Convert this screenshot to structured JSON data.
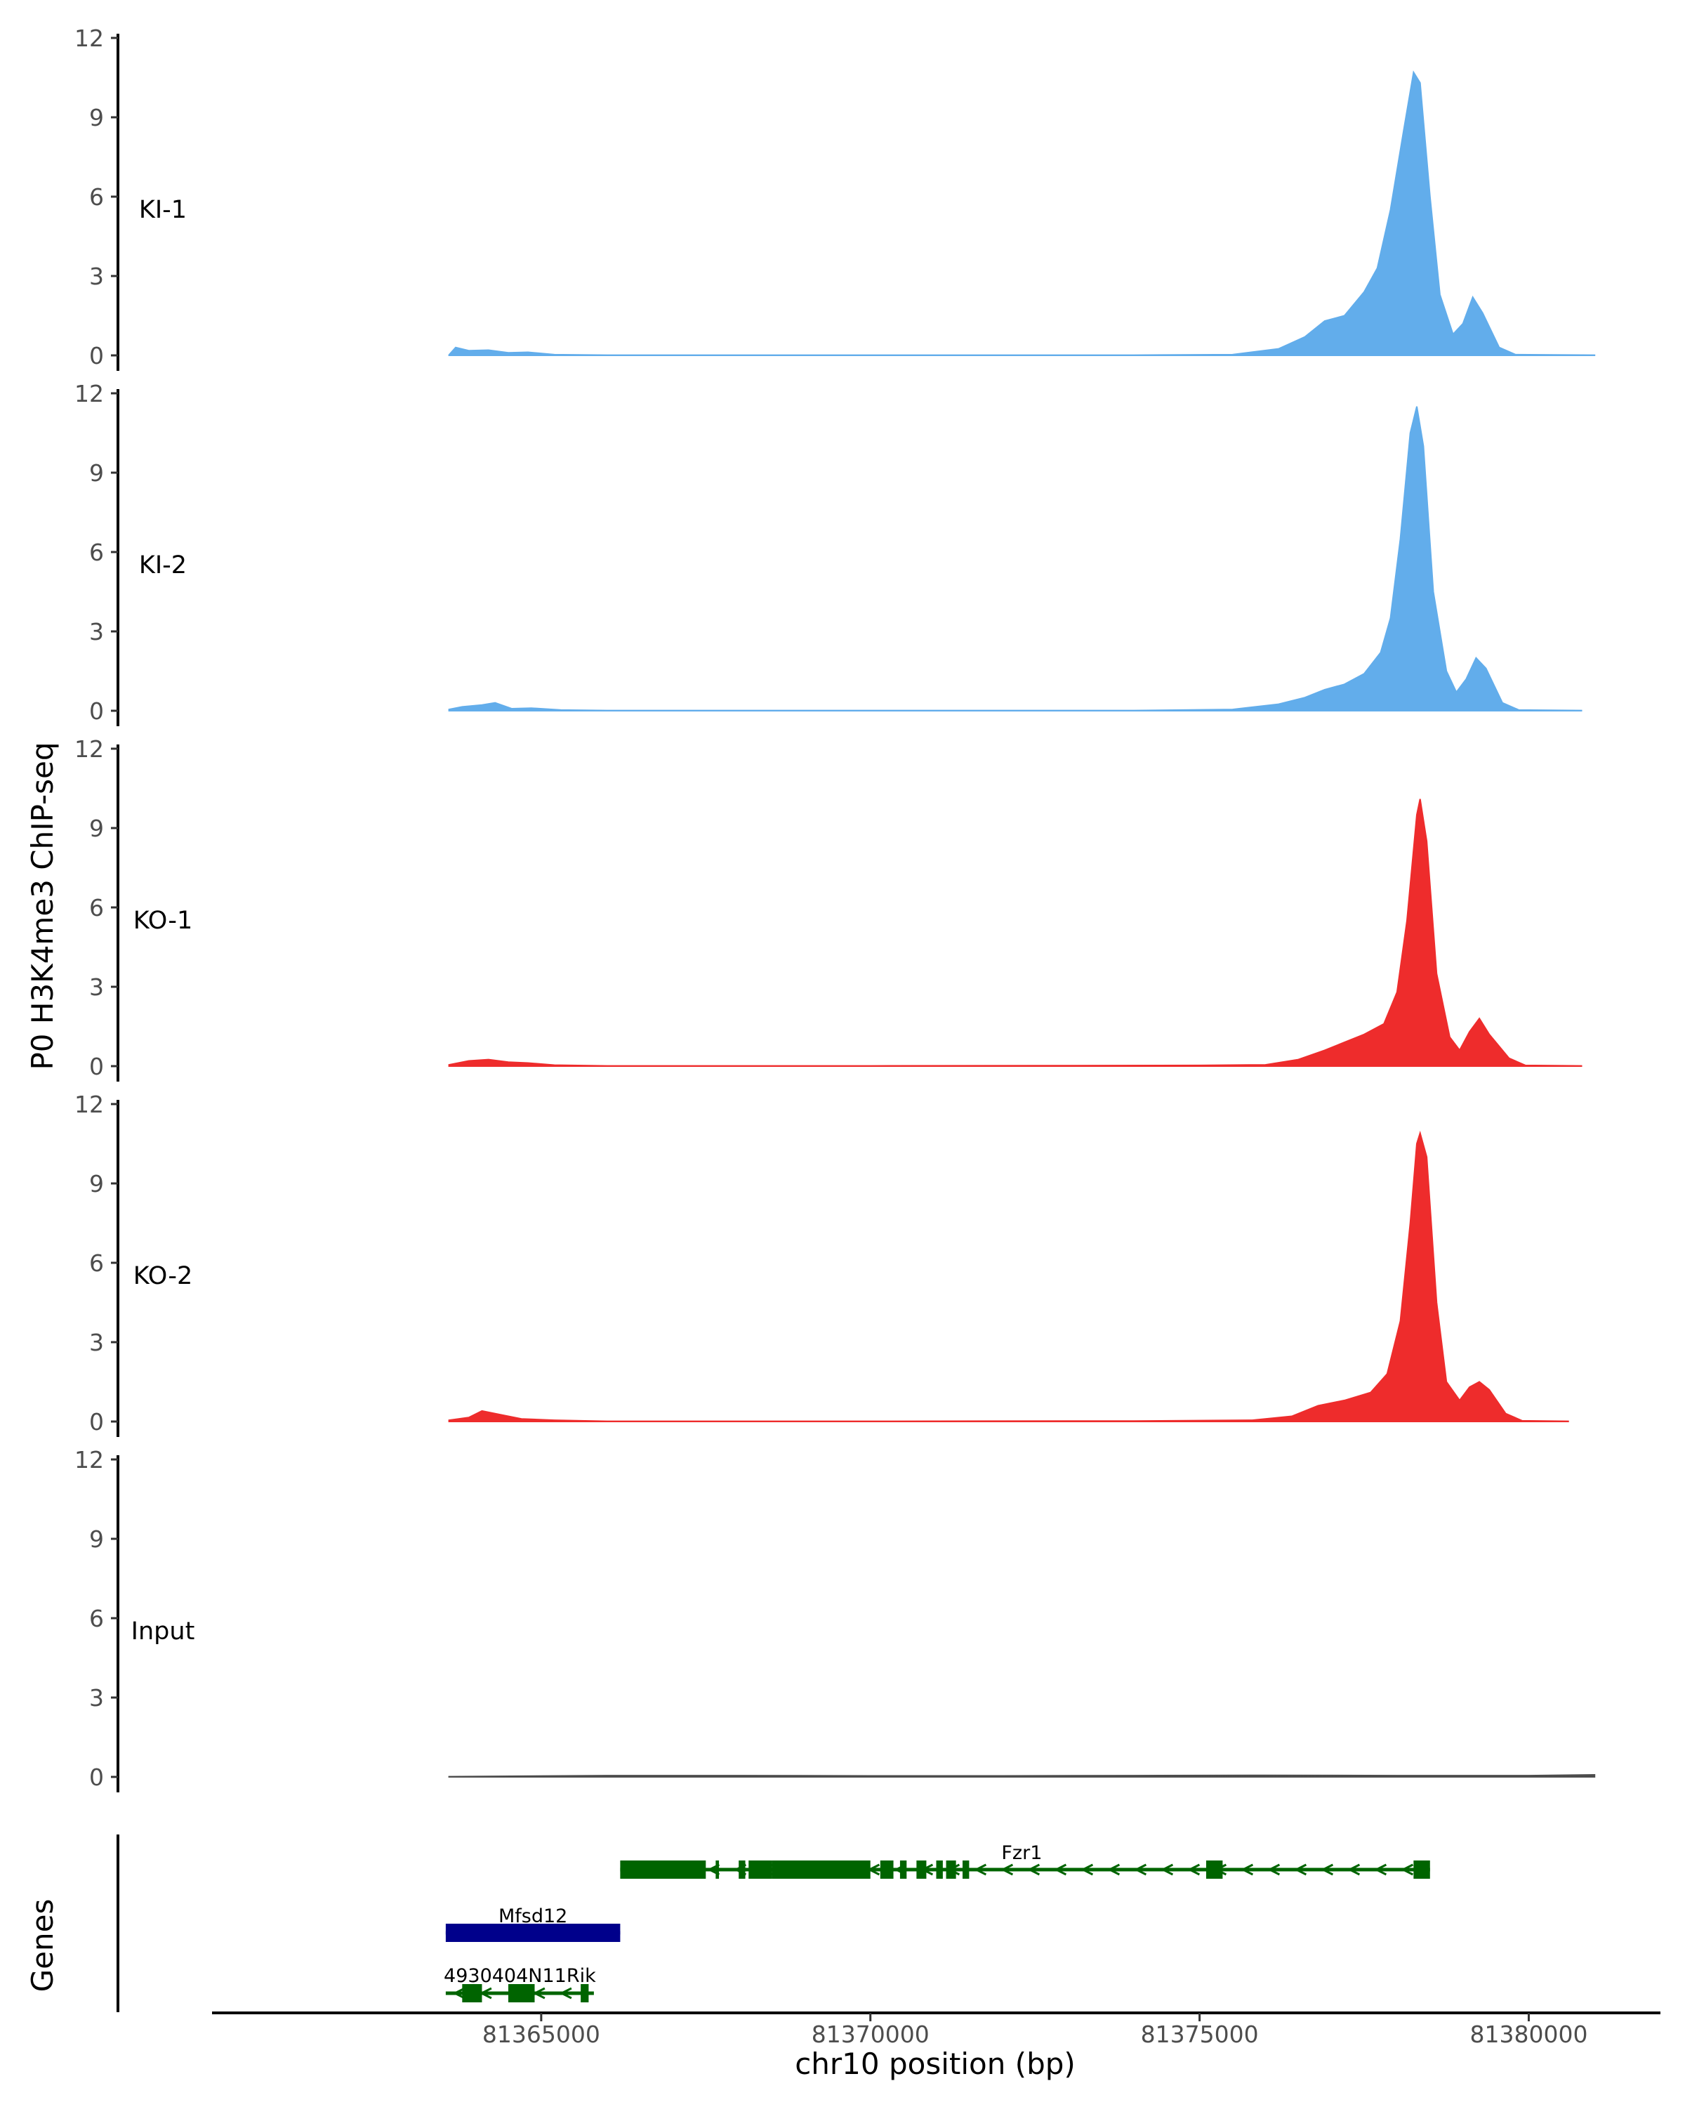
{
  "chart_data": {
    "type": "area",
    "ylabel": "P0 H3K4me3 ChIP-seq",
    "xlabel": "chr10 position (bp)",
    "xlim": [
      81360000,
      81382000
    ],
    "ylim": [
      0,
      12
    ],
    "yticks": [
      "0",
      "3",
      "6",
      "9",
      "12"
    ],
    "xticks": [
      {
        "value": 81365000,
        "label": "81365000"
      },
      {
        "value": 81370000,
        "label": "81370000"
      },
      {
        "value": 81375000,
        "label": "81375000"
      },
      {
        "value": 81380000,
        "label": "81380000"
      }
    ],
    "series": [
      {
        "name": "KI-1",
        "color": "#62ADEB",
        "points": [
          [
            81363600,
            0.02
          ],
          [
            81363700,
            0.3
          ],
          [
            81363900,
            0.18
          ],
          [
            81364200,
            0.2
          ],
          [
            81364500,
            0.1
          ],
          [
            81364800,
            0.12
          ],
          [
            81365200,
            0.03
          ],
          [
            81366000,
            0.01
          ],
          [
            81370000,
            0.01
          ],
          [
            81374000,
            0.01
          ],
          [
            81375500,
            0.03
          ],
          [
            81376200,
            0.25
          ],
          [
            81376600,
            0.7
          ],
          [
            81376900,
            1.3
          ],
          [
            81377200,
            1.5
          ],
          [
            81377500,
            2.4
          ],
          [
            81377700,
            3.3
          ],
          [
            81377900,
            5.5
          ],
          [
            81378100,
            8.5
          ],
          [
            81378250,
            10.7
          ],
          [
            81378350,
            10.3
          ],
          [
            81378500,
            6.0
          ],
          [
            81378650,
            2.3
          ],
          [
            81378850,
            0.8
          ],
          [
            81379000,
            1.2
          ],
          [
            81379150,
            2.2
          ],
          [
            81379300,
            1.6
          ],
          [
            81379550,
            0.3
          ],
          [
            81379800,
            0.03
          ],
          [
            81381000,
            0.01
          ]
        ]
      },
      {
        "name": "KI-2",
        "color": "#62ADEB",
        "points": [
          [
            81363600,
            0.05
          ],
          [
            81363800,
            0.15
          ],
          [
            81364100,
            0.22
          ],
          [
            81364300,
            0.3
          ],
          [
            81364550,
            0.08
          ],
          [
            81364850,
            0.1
          ],
          [
            81365300,
            0.03
          ],
          [
            81366000,
            0.01
          ],
          [
            81374000,
            0.01
          ],
          [
            81375500,
            0.05
          ],
          [
            81376200,
            0.25
          ],
          [
            81376600,
            0.5
          ],
          [
            81376900,
            0.8
          ],
          [
            81377200,
            1.0
          ],
          [
            81377500,
            1.4
          ],
          [
            81377750,
            2.2
          ],
          [
            81377900,
            3.5
          ],
          [
            81378050,
            6.5
          ],
          [
            81378200,
            10.5
          ],
          [
            81378300,
            11.5
          ],
          [
            81378400,
            10.0
          ],
          [
            81378550,
            4.5
          ],
          [
            81378750,
            1.5
          ],
          [
            81378900,
            0.7
          ],
          [
            81379050,
            1.2
          ],
          [
            81379200,
            2.0
          ],
          [
            81379350,
            1.6
          ],
          [
            81379600,
            0.3
          ],
          [
            81379850,
            0.03
          ],
          [
            81380800,
            0.01
          ]
        ]
      },
      {
        "name": "KO-1",
        "color": "#EE2C2C",
        "points": [
          [
            81363600,
            0.05
          ],
          [
            81363900,
            0.2
          ],
          [
            81364200,
            0.25
          ],
          [
            81364500,
            0.15
          ],
          [
            81364800,
            0.12
          ],
          [
            81365200,
            0.04
          ],
          [
            81366000,
            0.01
          ],
          [
            81370000,
            0.01
          ],
          [
            81373000,
            0.02
          ],
          [
            81375000,
            0.03
          ],
          [
            81376000,
            0.05
          ],
          [
            81376500,
            0.25
          ],
          [
            81376900,
            0.6
          ],
          [
            81377200,
            0.9
          ],
          [
            81377500,
            1.2
          ],
          [
            81377800,
            1.6
          ],
          [
            81378000,
            2.8
          ],
          [
            81378150,
            5.5
          ],
          [
            81378300,
            9.5
          ],
          [
            81378350,
            10.1
          ],
          [
            81378450,
            8.5
          ],
          [
            81378600,
            3.5
          ],
          [
            81378800,
            1.1
          ],
          [
            81378950,
            0.6
          ],
          [
            81379100,
            1.3
          ],
          [
            81379250,
            1.8
          ],
          [
            81379400,
            1.2
          ],
          [
            81379700,
            0.3
          ],
          [
            81379950,
            0.03
          ],
          [
            81380800,
            0.01
          ]
        ]
      },
      {
        "name": "KO-2",
        "color": "#EE2C2C",
        "points": [
          [
            81363600,
            0.05
          ],
          [
            81363900,
            0.15
          ],
          [
            81364100,
            0.4
          ],
          [
            81364400,
            0.25
          ],
          [
            81364700,
            0.1
          ],
          [
            81365200,
            0.05
          ],
          [
            81366000,
            0.01
          ],
          [
            81370000,
            0.01
          ],
          [
            81374000,
            0.02
          ],
          [
            81375800,
            0.05
          ],
          [
            81376400,
            0.2
          ],
          [
            81376800,
            0.6
          ],
          [
            81377200,
            0.8
          ],
          [
            81377600,
            1.1
          ],
          [
            81377850,
            1.8
          ],
          [
            81378050,
            3.8
          ],
          [
            81378200,
            7.5
          ],
          [
            81378300,
            10.5
          ],
          [
            81378350,
            10.9
          ],
          [
            81378450,
            10.0
          ],
          [
            81378600,
            4.5
          ],
          [
            81378750,
            1.5
          ],
          [
            81378950,
            0.8
          ],
          [
            81379100,
            1.3
          ],
          [
            81379250,
            1.5
          ],
          [
            81379400,
            1.2
          ],
          [
            81379650,
            0.3
          ],
          [
            81379900,
            0.03
          ],
          [
            81380600,
            0.01
          ]
        ]
      },
      {
        "name": "Input",
        "color": "#4D4D4D",
        "points": [
          [
            81363600,
            0.01
          ],
          [
            81366000,
            0.05
          ],
          [
            81368000,
            0.05
          ],
          [
            81370000,
            0.04
          ],
          [
            81372000,
            0.04
          ],
          [
            81374000,
            0.05
          ],
          [
            81376000,
            0.06
          ],
          [
            81378000,
            0.05
          ],
          [
            81380000,
            0.05
          ],
          [
            81381000,
            0.08
          ]
        ]
      }
    ],
    "genes": {
      "label": "Genes",
      "items": [
        {
          "name": "Fzr1",
          "strand": "-",
          "color": "#006400",
          "start": 81366200,
          "end": 81378500,
          "exons": [
            [
              81366200,
              81367500
            ],
            [
              81367650,
              81367700
            ],
            [
              81368000,
              81368100
            ],
            [
              81368150,
              81368500
            ],
            [
              81368500,
              81370000
            ],
            [
              81370150,
              81370350
            ],
            [
              81370450,
              81370550
            ],
            [
              81370700,
              81370850
            ],
            [
              81371000,
              81371100
            ],
            [
              81371150,
              81371300
            ],
            [
              81371400,
              81371500
            ],
            [
              81375100,
              81375350
            ],
            [
              81378250,
              81378500
            ]
          ]
        },
        {
          "name": "Mfsd12",
          "strand": "+",
          "color": "#00008B",
          "start": 81363550,
          "end": 81366200,
          "exons": [
            [
              81363550,
              81366200
            ]
          ]
        },
        {
          "name": "4930404N11Rik",
          "strand": "-",
          "color": "#006400",
          "start": 81363550,
          "end": 81365800,
          "exons": [
            [
              81363800,
              81364100
            ],
            [
              81364500,
              81364900
            ],
            [
              81365600,
              81365720
            ]
          ]
        }
      ]
    }
  }
}
